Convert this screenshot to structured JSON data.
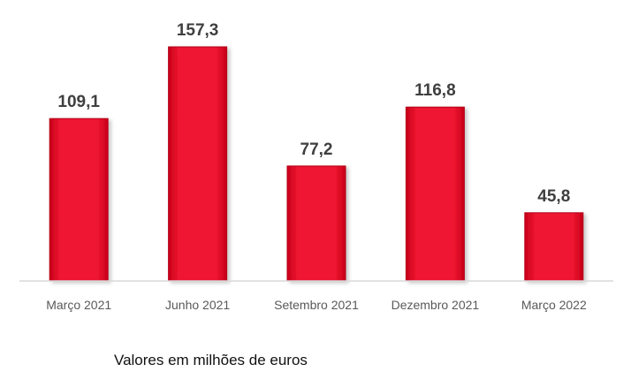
{
  "chart_data": {
    "type": "bar",
    "categories": [
      "Março 2021",
      "Junho 2021",
      "Setembro 2021",
      "Dezembro 2021",
      "Março 2022"
    ],
    "values": [
      109.1,
      157.3,
      77.2,
      116.8,
      45.8
    ],
    "value_labels": [
      "109,1",
      "157,3",
      "77,2",
      "116,8",
      "45,8"
    ],
    "ylim": [
      0,
      157.3
    ],
    "grid": false,
    "bar_color": "#e8102a",
    "bar_edge_color": "#b30018"
  },
  "footnote": "Valores em milhões de euros"
}
